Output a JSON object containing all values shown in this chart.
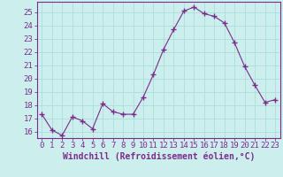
{
  "x": [
    0,
    1,
    2,
    3,
    4,
    5,
    6,
    7,
    8,
    9,
    10,
    11,
    12,
    13,
    14,
    15,
    16,
    17,
    18,
    19,
    20,
    21,
    22,
    23
  ],
  "y": [
    17.3,
    16.1,
    15.7,
    17.1,
    16.8,
    16.2,
    18.1,
    17.5,
    17.3,
    17.3,
    18.6,
    20.3,
    22.2,
    23.7,
    25.1,
    25.4,
    24.9,
    24.7,
    24.2,
    22.7,
    20.9,
    19.5,
    18.2,
    18.4
  ],
  "line_color": "#7b2d8b",
  "marker": "+",
  "marker_size": 4,
  "bg_color": "#cceeed",
  "grid_color": "#aadddd",
  "xlabel": "Windchill (Refroidissement éolien,°C)",
  "xlabel_fontsize": 7,
  "tick_color": "#7b2d8b",
  "tick_fontsize": 6.5,
  "ylim": [
    15.5,
    25.8
  ],
  "yticks": [
    16,
    17,
    18,
    19,
    20,
    21,
    22,
    23,
    24,
    25
  ],
  "xlim": [
    -0.5,
    23.5
  ],
  "xticks": [
    0,
    1,
    2,
    3,
    4,
    5,
    6,
    7,
    8,
    9,
    10,
    11,
    12,
    13,
    14,
    15,
    16,
    17,
    18,
    19,
    20,
    21,
    22,
    23
  ]
}
